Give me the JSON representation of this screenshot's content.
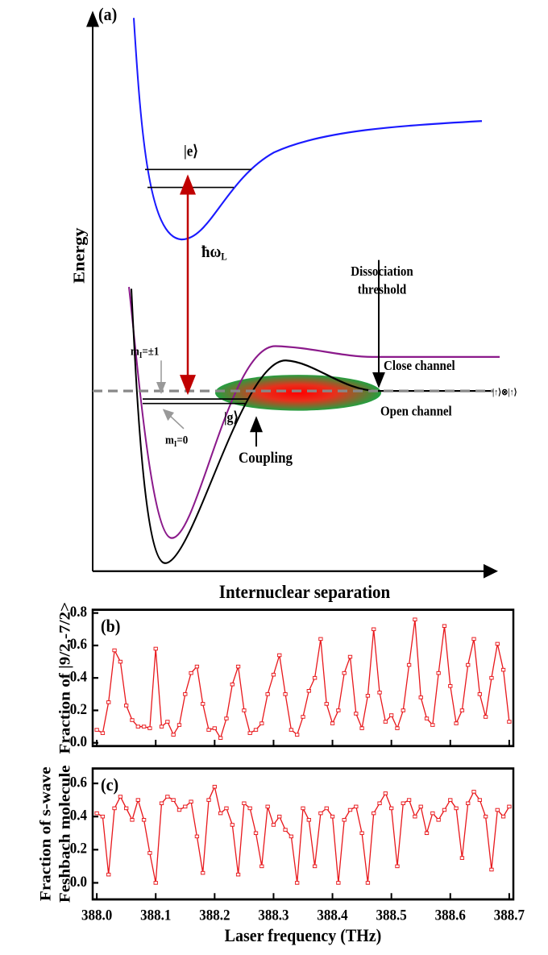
{
  "diagram": {
    "panel_label": "(a)",
    "y_axis_label": "Energy",
    "x_axis_label": "Internuclear separation",
    "excited_state": "|e⟩",
    "photon": {
      "base": "ħω",
      "sub": "L"
    },
    "threshold": [
      "Dissociation",
      "threshold"
    ],
    "close_channel": "Close channel",
    "open_channel": "Open channel",
    "atom_state": "|↑⟩⊗|↑⟩",
    "mi_pm1": {
      "base": "m",
      "sub": "I",
      "rest": "=±1"
    },
    "mi_0": {
      "base": "m",
      "sub": "I",
      "rest": "=0"
    },
    "ground_state": "|g⟩",
    "coupling": "Coupling"
  },
  "chart_data": [
    {
      "type": "line",
      "panel_label": "(b)",
      "ylabel": [
        "Fraction of |9/2,-7/2>"
      ],
      "color": "#e8181c",
      "x": [
        388,
        388.01,
        388.02,
        388.03,
        388.04,
        388.05,
        388.06,
        388.07,
        388.08,
        388.09,
        388.1,
        388.11,
        388.12,
        388.13,
        388.14,
        388.15,
        388.16,
        388.17,
        388.18,
        388.19,
        388.2,
        388.21,
        388.22,
        388.23,
        388.24,
        388.25,
        388.26,
        388.27,
        388.28,
        388.29,
        388.3,
        388.31,
        388.32,
        388.33,
        388.34,
        388.35,
        388.36,
        388.37,
        388.38,
        388.39,
        388.4,
        388.41,
        388.42,
        388.43,
        388.44,
        388.45,
        388.46,
        388.47,
        388.48,
        388.49,
        388.5,
        388.51,
        388.52,
        388.53,
        388.54,
        388.55,
        388.56,
        388.57,
        388.58,
        388.59,
        388.6,
        388.61,
        388.62,
        388.63,
        388.64,
        388.65,
        388.66,
        388.67,
        388.68,
        388.69,
        388.7
      ],
      "values": [
        0.08,
        0.06,
        0.25,
        0.57,
        0.5,
        0.23,
        0.14,
        0.1,
        0.1,
        0.09,
        0.58,
        0.1,
        0.13,
        0.05,
        0.11,
        0.3,
        0.43,
        0.47,
        0.24,
        0.08,
        0.09,
        0.03,
        0.15,
        0.36,
        0.47,
        0.2,
        0.06,
        0.08,
        0.12,
        0.3,
        0.42,
        0.54,
        0.3,
        0.08,
        0.05,
        0.16,
        0.32,
        0.4,
        0.64,
        0.24,
        0.12,
        0.2,
        0.43,
        0.53,
        0.18,
        0.09,
        0.29,
        0.7,
        0.31,
        0.13,
        0.17,
        0.09,
        0.2,
        0.48,
        0.76,
        0.28,
        0.15,
        0.11,
        0.43,
        0.72,
        0.35,
        0.12,
        0.2,
        0.48,
        0.64,
        0.3,
        0.16,
        0.4,
        0.61,
        0.45,
        0.13
      ],
      "xlim": [
        387.993,
        388.707
      ],
      "xticks": [
        388,
        388.1,
        388.2,
        388.3,
        388.4,
        388.5,
        388.6,
        388.7
      ],
      "ylim": [
        -0.02,
        0.82
      ],
      "yticks": [
        {
          "value": 0,
          "label": "0.0"
        },
        0.2,
        0.4,
        0.6,
        0.8
      ]
    },
    {
      "type": "line",
      "panel_label": "(c)",
      "ylabel": [
        "Fraction of s-wave",
        "Feshbach molecule"
      ],
      "xlabel": "Laser frequency (THz)",
      "color": "#e8181c",
      "x": [
        388,
        388.01,
        388.02,
        388.03,
        388.04,
        388.05,
        388.06,
        388.07,
        388.08,
        388.09,
        388.1,
        388.11,
        388.12,
        388.13,
        388.14,
        388.15,
        388.16,
        388.17,
        388.18,
        388.19,
        388.2,
        388.21,
        388.22,
        388.23,
        388.24,
        388.25,
        388.26,
        388.27,
        388.28,
        388.29,
        388.3,
        388.31,
        388.32,
        388.33,
        388.34,
        388.35,
        388.36,
        388.37,
        388.38,
        388.39,
        388.4,
        388.41,
        388.42,
        388.43,
        388.44,
        388.45,
        388.46,
        388.47,
        388.48,
        388.49,
        388.5,
        388.51,
        388.52,
        388.53,
        388.54,
        388.55,
        388.56,
        388.57,
        388.58,
        388.59,
        388.6,
        388.61,
        388.62,
        388.63,
        388.64,
        388.65,
        388.66,
        388.67,
        388.68,
        388.69,
        388.7
      ],
      "values": [
        0.42,
        0.4,
        0.05,
        0.45,
        0.52,
        0.45,
        0.38,
        0.5,
        0.38,
        0.18,
        0,
        0.48,
        0.52,
        0.5,
        0.44,
        0.46,
        0.49,
        0.28,
        0.06,
        0.5,
        0.58,
        0.42,
        0.45,
        0.35,
        0.05,
        0.48,
        0.45,
        0.3,
        0.1,
        0.46,
        0.35,
        0.4,
        0.32,
        0.28,
        0,
        0.45,
        0.38,
        0.1,
        0.42,
        0.45,
        0.4,
        0,
        0.38,
        0.44,
        0.46,
        0.3,
        0,
        0.42,
        0.48,
        0.54,
        0.45,
        0.1,
        0.48,
        0.5,
        0.4,
        0.46,
        0.3,
        0.42,
        0.38,
        0.44,
        0.5,
        0.45,
        0.15,
        0.48,
        0.55,
        0.5,
        0.4,
        0.08,
        0.44,
        0.4,
        0.46
      ],
      "xlim": [
        387.993,
        388.707
      ],
      "xticks": [
        {
          "value": 388,
          "label": "388.0"
        },
        388.1,
        388.2,
        388.3,
        388.4,
        388.5,
        388.6,
        {
          "value": 388.7,
          "label": "388.7"
        }
      ],
      "ylim": [
        -0.1,
        0.69
      ],
      "yticks": [
        {
          "value": 0,
          "label": "0.0"
        },
        0.2,
        0.4,
        0.6
      ]
    }
  ]
}
